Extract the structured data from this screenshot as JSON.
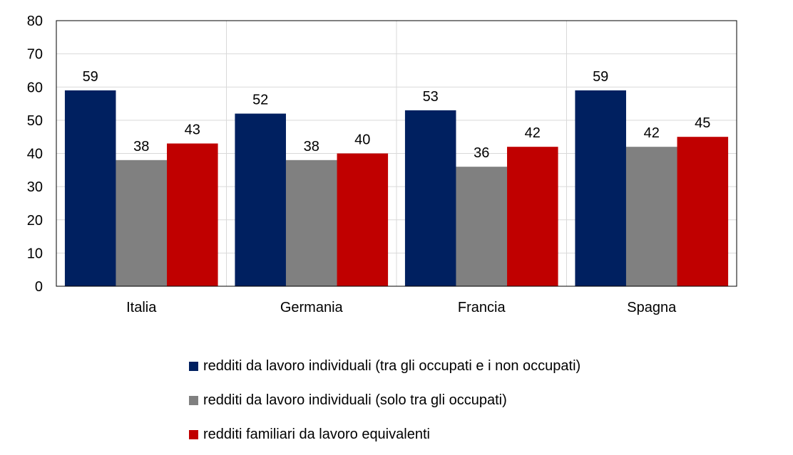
{
  "chart_data": {
    "type": "bar",
    "categories": [
      "Italia",
      "Germania",
      "Francia",
      "Spagna"
    ],
    "series": [
      {
        "name": "redditi da lavoro individuali (tra gli occupati e i non occupati)",
        "color": "#002060",
        "values": [
          59,
          52,
          53,
          59
        ],
        "labels": [
          "59",
          "52",
          "53",
          "59"
        ]
      },
      {
        "name": "redditi da lavoro individuali (solo tra gli occupati)",
        "color": "#808080",
        "values": [
          38,
          38,
          36,
          42
        ],
        "labels": [
          "38",
          "38",
          "36",
          "42"
        ]
      },
      {
        "name": "redditi familiari da lavoro equivalenti",
        "color": "#C00000",
        "values": [
          43,
          40,
          42,
          45
        ],
        "labels": [
          "43",
          "40",
          "42",
          "45"
        ]
      }
    ],
    "ylim": [
      0,
      80
    ],
    "yticks": [
      0,
      10,
      20,
      30,
      40,
      50,
      60,
      70,
      80
    ],
    "grid": true,
    "legend_position": "bottom",
    "title": "",
    "xlabel": "",
    "ylabel": ""
  }
}
